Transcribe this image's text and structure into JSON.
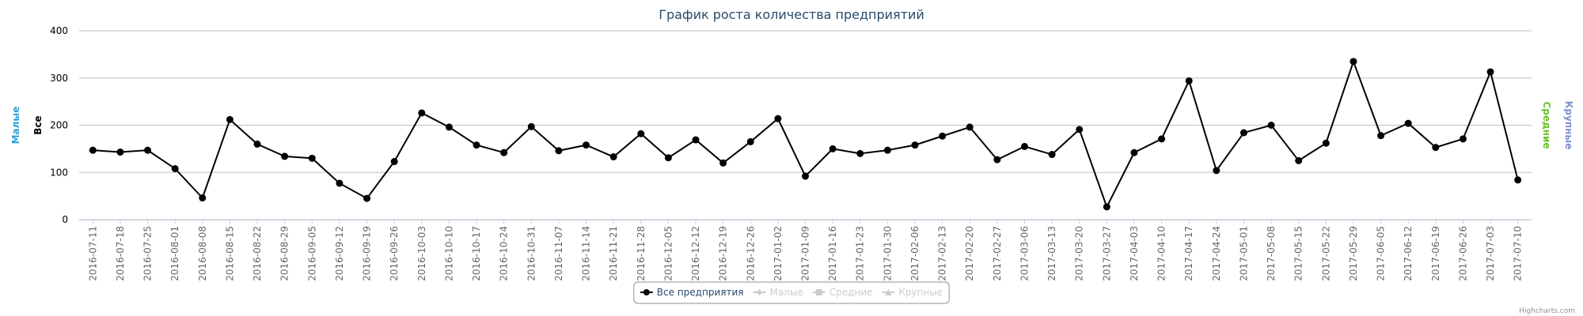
{
  "chart_data": {
    "type": "line",
    "title": "График роста количества предприятий",
    "credits": "Highcharts.com",
    "categories": [
      "2016-07-11",
      "2016-07-18",
      "2016-07-25",
      "2016-08-01",
      "2016-08-08",
      "2016-08-15",
      "2016-08-22",
      "2016-08-29",
      "2016-09-05",
      "2016-09-12",
      "2016-09-19",
      "2016-09-26",
      "2016-10-03",
      "2016-10-10",
      "2016-10-17",
      "2016-10-24",
      "2016-10-31",
      "2016-11-07",
      "2016-11-14",
      "2016-11-21",
      "2016-11-28",
      "2016-12-05",
      "2016-12-12",
      "2016-12-19",
      "2016-12-26",
      "2017-01-02",
      "2017-01-09",
      "2017-01-16",
      "2017-01-23",
      "2017-01-30",
      "2017-02-06",
      "2017-02-13",
      "2017-02-20",
      "2017-02-27",
      "2017-03-06",
      "2017-03-13",
      "2017-03-20",
      "2017-03-27",
      "2017-04-03",
      "2017-04-10",
      "2017-04-17",
      "2017-04-24",
      "2017-05-01",
      "2017-05-08",
      "2017-05-15",
      "2017-05-22",
      "2017-05-29",
      "2017-06-05",
      "2017-06-12",
      "2017-06-19",
      "2017-06-26",
      "2017-07-03",
      "2017-07-10"
    ],
    "series": [
      {
        "name": "Все предприятия",
        "color": "#000000",
        "marker": "circle",
        "visible": true,
        "values": [
          147,
          143,
          147,
          108,
          46,
          212,
          160,
          134,
          130,
          77,
          45,
          123,
          226,
          196,
          158,
          142,
          197,
          146,
          158,
          133,
          182,
          131,
          169,
          120,
          165,
          214,
          92,
          150,
          140,
          147,
          158,
          177,
          196,
          127,
          155,
          138,
          191,
          27,
          142,
          171,
          294,
          104,
          184,
          200,
          125,
          162,
          335,
          178,
          204,
          153,
          171,
          313,
          84
        ]
      },
      {
        "name": "Малые",
        "color": "#2f9fd8",
        "marker": "diamond",
        "visible": false
      },
      {
        "name": "Средние",
        "color": "#6cc12a",
        "marker": "square",
        "visible": false
      },
      {
        "name": "Крупные",
        "color": "#7f8fd0",
        "marker": "triangle",
        "visible": false
      }
    ],
    "axis_titles": [
      {
        "title": "Малые",
        "color": "#2f9fd8",
        "side": "left"
      },
      {
        "title": "Все",
        "color": "#000000",
        "side": "left"
      },
      {
        "title": "Средние",
        "color": "#6cc12a",
        "side": "right"
      },
      {
        "title": "Крупные",
        "color": "#7f8fd0",
        "side": "right"
      }
    ],
    "ylim": [
      0,
      400
    ],
    "yticks": [
      0,
      100,
      200,
      300,
      400
    ],
    "grid": true,
    "legend": "bottom"
  }
}
